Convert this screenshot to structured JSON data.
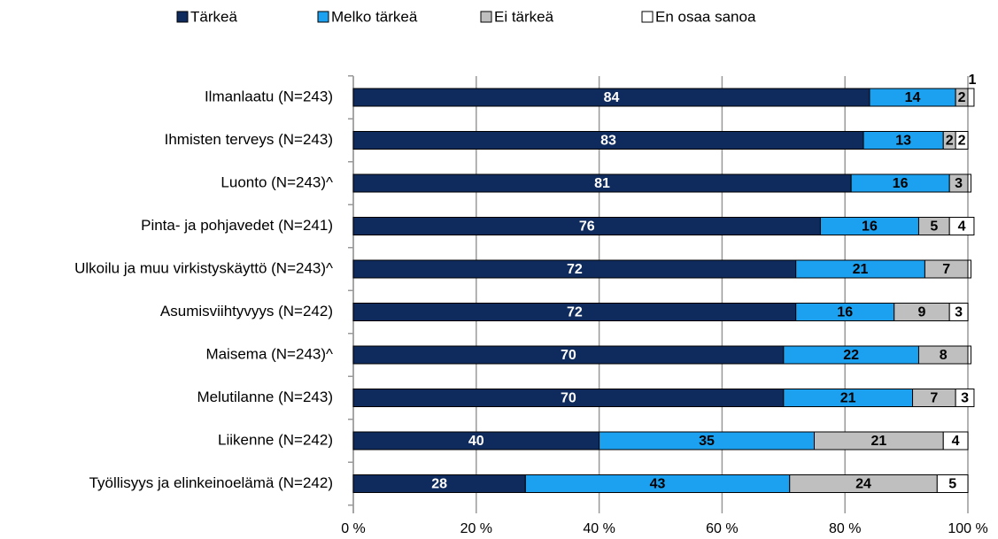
{
  "chart_data": {
    "type": "stacked-bar-horizontal",
    "categories": [
      "Ilmanlaatu (N=243)",
      "Ihmisten terveys (N=243)",
      "Luonto (N=243)^",
      "Pinta- ja pohjavedet (N=241)",
      "Ulkoilu ja muu virkistyskäyttö (N=243)^",
      "Asumisviihtyvyys (N=242)",
      "Maisema (N=243)^",
      "Melutilanne (N=243)",
      "Liikenne (N=242)",
      "Työllisyys ja elinkeinoelämä (N=242)"
    ],
    "series": [
      {
        "name": "Tärkeä",
        "color": "#0f2a5c",
        "values": [
          84,
          83,
          81,
          76,
          72,
          72,
          70,
          70,
          40,
          28
        ]
      },
      {
        "name": "Melko tärkeä",
        "color": "#1ba1ef",
        "values": [
          14,
          13,
          16,
          16,
          21,
          16,
          22,
          21,
          35,
          43
        ]
      },
      {
        "name": "Ei tärkeä",
        "color": "#bfbfbf",
        "values": [
          2,
          2,
          3,
          5,
          7,
          9,
          8,
          7,
          21,
          24
        ]
      },
      {
        "name": "En osaa sanoa",
        "color": "#ffffff",
        "values": [
          1,
          2,
          0.5,
          4,
          0.5,
          3,
          0.5,
          3,
          4,
          5
        ],
        "value_labels": [
          "1",
          "2",
          null,
          "4",
          null,
          "3",
          null,
          "3",
          "4",
          "5"
        ]
      }
    ],
    "xlim": [
      0,
      100
    ],
    "xticks": [
      {
        "value": 0,
        "label": "0 %"
      },
      {
        "value": 20,
        "label": "20 %"
      },
      {
        "value": 40,
        "label": "40 %"
      },
      {
        "value": 60,
        "label": "60 %"
      },
      {
        "value": 80,
        "label": "80 %"
      },
      {
        "value": 100,
        "label": "100 %"
      }
    ],
    "grid": true,
    "legend": "top"
  }
}
